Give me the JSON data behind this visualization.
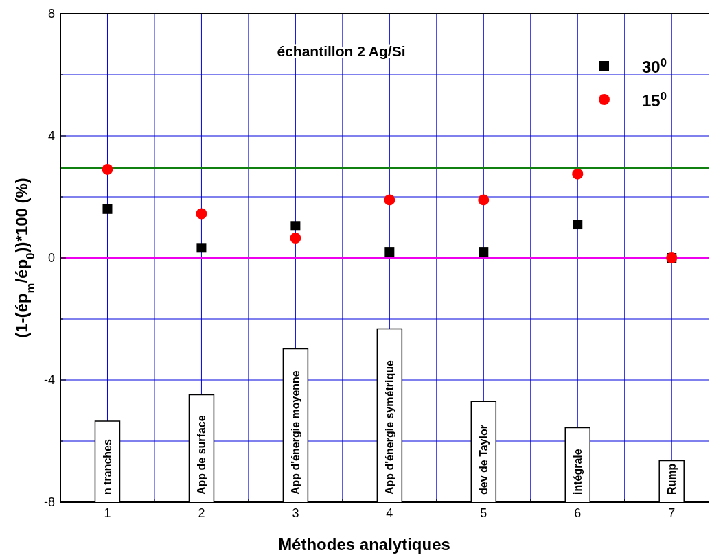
{
  "chart_data": {
    "type": "scatter",
    "title": "échantillon 2 Ag/Si",
    "xlabel": "Méthodes analytiques",
    "ylabel": "(1-(ép$_{m}$/ép$_{0}$))*100 (%)",
    "x": [
      1,
      2,
      3,
      4,
      5,
      6,
      7
    ],
    "series": [
      {
        "name": "30$^{0}$",
        "color": "#000000",
        "marker": "square",
        "values": [
          1.6,
          0.33,
          1.05,
          0.2,
          0.2,
          1.1,
          0
        ]
      },
      {
        "name": "15$^{0}$",
        "color": "#ff0000",
        "marker": "circle",
        "values": [
          2.9,
          1.45,
          0.65,
          1.9,
          1.9,
          2.75,
          0
        ]
      }
    ],
    "xlim": [
      0.5,
      7.4
    ],
    "xticks": [
      {
        "value": 0.5,
        "label": null
      },
      1,
      {
        "value": 1.5,
        "label": null
      },
      2,
      {
        "value": 2.5,
        "label": null
      },
      3,
      {
        "value": 3.5,
        "label": null
      },
      4,
      {
        "value": 4.5,
        "label": null
      },
      5,
      {
        "value": 5.5,
        "label": null
      },
      6,
      {
        "value": 6.5,
        "label": null
      },
      7
    ],
    "ylim": [
      -8,
      8
    ],
    "yticks": [
      -8,
      {
        "value": -6,
        "label": null
      },
      -4,
      {
        "value": -2,
        "label": null
      },
      0,
      {
        "value": 2,
        "label": null
      },
      4,
      {
        "value": 6,
        "label": null
      },
      8
    ],
    "grid": true,
    "legend": "top right",
    "ref_lines": [
      {
        "axis": "y",
        "value": 2.95,
        "color": "#108010"
      },
      {
        "axis": "y",
        "value": 0,
        "color": "#ee00ee"
      }
    ],
    "annotations": [
      "n tranches",
      "App de surface",
      "App d'énergie moyenne",
      "App d'énergie symétrique",
      "dev de Taylor",
      "intégrale",
      "Rump"
    ]
  }
}
